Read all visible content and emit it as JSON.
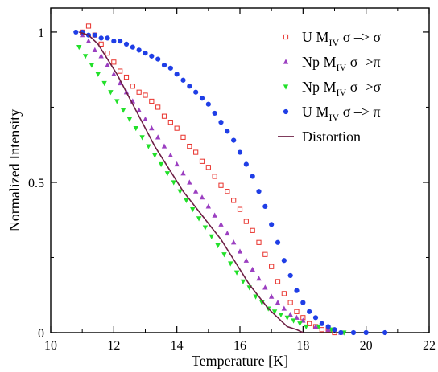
{
  "chart_data": {
    "type": "scatter",
    "title": "",
    "xlabel": "Temperature [K]",
    "ylabel": "Normalized Intensity",
    "xlim": [
      10,
      22
    ],
    "ylim": [
      0,
      1.08
    ],
    "x_ticks": [
      10,
      12,
      14,
      16,
      18,
      20,
      22
    ],
    "y_ticks": [
      0,
      0.5,
      1
    ],
    "x_tick_labels": [
      "10",
      "12",
      "14",
      "16",
      "18",
      "20",
      "22"
    ],
    "y_tick_labels": [
      "0",
      "0.5",
      "1"
    ],
    "grid": false,
    "legend_position": "top-right",
    "series": [
      {
        "label_main": "U M",
        "label_sub": "IV",
        "label_tail": " σ –> σ",
        "marker": "open-square",
        "color": "#e8322c",
        "x": [
          11.0,
          11.2,
          11.4,
          11.6,
          11.8,
          12.0,
          12.2,
          12.4,
          12.6,
          12.8,
          13.0,
          13.2,
          13.4,
          13.6,
          13.8,
          14.0,
          14.2,
          14.4,
          14.6,
          14.8,
          15.0,
          15.2,
          15.4,
          15.6,
          15.8,
          16.0,
          16.2,
          16.4,
          16.6,
          16.8,
          17.0,
          17.2,
          17.4,
          17.6,
          17.8,
          18.0,
          18.2,
          18.4,
          18.6,
          18.8,
          19.0
        ],
        "y": [
          1.0,
          1.02,
          0.99,
          0.96,
          0.93,
          0.9,
          0.87,
          0.85,
          0.82,
          0.8,
          0.79,
          0.77,
          0.75,
          0.72,
          0.7,
          0.68,
          0.65,
          0.62,
          0.6,
          0.57,
          0.55,
          0.52,
          0.49,
          0.47,
          0.44,
          0.41,
          0.37,
          0.34,
          0.3,
          0.26,
          0.22,
          0.17,
          0.13,
          0.1,
          0.07,
          0.05,
          0.03,
          0.02,
          0.01,
          0.01,
          0.0
        ]
      },
      {
        "label_main": "Np M",
        "label_sub": "IV",
        "label_tail": " σ–>π",
        "marker": "triangle-up",
        "color": "#9b3fc1",
        "x": [
          11.0,
          11.2,
          11.4,
          11.6,
          11.8,
          12.0,
          12.2,
          12.4,
          12.6,
          12.8,
          13.0,
          13.2,
          13.4,
          13.6,
          13.8,
          14.0,
          14.2,
          14.4,
          14.6,
          14.8,
          15.0,
          15.2,
          15.4,
          15.6,
          15.8,
          16.0,
          16.2,
          16.4,
          16.6,
          16.8,
          17.0,
          17.2,
          17.4,
          17.6,
          17.8,
          18.0,
          18.4,
          18.8,
          19.2
        ],
        "y": [
          0.99,
          0.97,
          0.94,
          0.92,
          0.89,
          0.86,
          0.83,
          0.8,
          0.77,
          0.74,
          0.71,
          0.68,
          0.65,
          0.62,
          0.59,
          0.56,
          0.53,
          0.5,
          0.47,
          0.45,
          0.42,
          0.39,
          0.36,
          0.33,
          0.3,
          0.27,
          0.24,
          0.21,
          0.18,
          0.15,
          0.12,
          0.1,
          0.08,
          0.06,
          0.05,
          0.04,
          0.02,
          0.01,
          0.0
        ]
      },
      {
        "label_main": "Np M",
        "label_sub": "IV",
        "label_tail": " σ–>σ",
        "marker": "triangle-down",
        "color": "#22e02a",
        "x": [
          10.9,
          11.1,
          11.3,
          11.5,
          11.7,
          11.9,
          12.1,
          12.3,
          12.5,
          12.7,
          12.9,
          13.1,
          13.3,
          13.5,
          13.7,
          13.9,
          14.1,
          14.3,
          14.5,
          14.7,
          14.9,
          15.1,
          15.3,
          15.5,
          15.7,
          15.9,
          16.1,
          16.3,
          16.5,
          16.7,
          16.9,
          17.1,
          17.3,
          17.5,
          17.7,
          17.9,
          18.1,
          18.5,
          18.9,
          19.3
        ],
        "y": [
          0.95,
          0.92,
          0.89,
          0.86,
          0.83,
          0.8,
          0.77,
          0.74,
          0.71,
          0.68,
          0.65,
          0.62,
          0.59,
          0.56,
          0.53,
          0.5,
          0.47,
          0.44,
          0.41,
          0.38,
          0.35,
          0.32,
          0.29,
          0.26,
          0.23,
          0.2,
          0.17,
          0.15,
          0.12,
          0.1,
          0.08,
          0.07,
          0.06,
          0.05,
          0.04,
          0.03,
          0.02,
          0.02,
          0.01,
          0.0
        ]
      },
      {
        "label_main": "U M",
        "label_sub": "IV",
        "label_tail": " σ –> π",
        "marker": "filled-circle",
        "color": "#1f3ee6",
        "x": [
          10.8,
          11.0,
          11.2,
          11.4,
          11.6,
          11.8,
          12.0,
          12.2,
          12.4,
          12.6,
          12.8,
          13.0,
          13.2,
          13.4,
          13.6,
          13.8,
          14.0,
          14.2,
          14.4,
          14.6,
          14.8,
          15.0,
          15.2,
          15.4,
          15.6,
          15.8,
          16.0,
          16.2,
          16.4,
          16.6,
          16.8,
          17.0,
          17.2,
          17.4,
          17.6,
          17.8,
          18.0,
          18.2,
          18.4,
          18.6,
          18.8,
          19.0,
          19.2,
          19.6,
          20.0,
          20.6
        ],
        "y": [
          1.0,
          1.0,
          0.99,
          0.99,
          0.98,
          0.98,
          0.97,
          0.97,
          0.96,
          0.95,
          0.94,
          0.93,
          0.92,
          0.91,
          0.89,
          0.88,
          0.86,
          0.84,
          0.82,
          0.8,
          0.78,
          0.76,
          0.73,
          0.7,
          0.67,
          0.64,
          0.6,
          0.56,
          0.52,
          0.47,
          0.42,
          0.36,
          0.3,
          0.24,
          0.19,
          0.14,
          0.1,
          0.07,
          0.05,
          0.03,
          0.02,
          0.01,
          0.0,
          0.0,
          0.0,
          0.0
        ]
      },
      {
        "label_main": "Distortion",
        "label_sub": "",
        "label_tail": "",
        "marker": "line",
        "color": "#6d1f44",
        "x": [
          10.9,
          11.2,
          11.5,
          11.8,
          12.1,
          12.4,
          12.7,
          13.0,
          13.3,
          13.6,
          13.9,
          14.2,
          14.5,
          14.8,
          15.1,
          15.4,
          15.7,
          16.0,
          16.3,
          16.6,
          16.9,
          17.2,
          17.5,
          17.8,
          18.0
        ],
        "y": [
          1.0,
          0.99,
          0.96,
          0.91,
          0.86,
          0.8,
          0.74,
          0.68,
          0.62,
          0.57,
          0.52,
          0.47,
          0.43,
          0.39,
          0.35,
          0.31,
          0.26,
          0.21,
          0.16,
          0.12,
          0.08,
          0.05,
          0.02,
          0.01,
          0.0
        ]
      }
    ]
  }
}
